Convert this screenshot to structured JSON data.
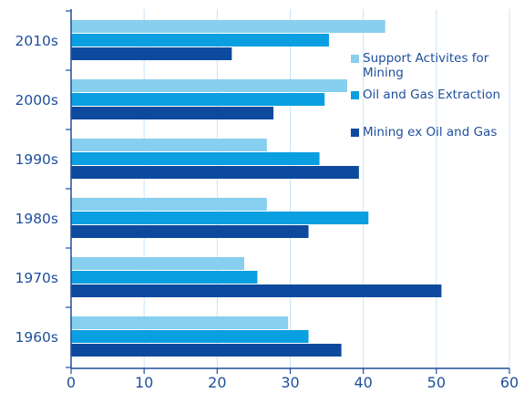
{
  "chart_data": {
    "type": "bar",
    "orientation": "horizontal",
    "categories": [
      "2010s",
      "2000s",
      "1990s",
      "1980s",
      "1970s",
      "1960s"
    ],
    "series": [
      {
        "name": "Support Activites for Mining",
        "color": "#87cfee",
        "values": [
          43,
          37.8,
          26.8,
          26.8,
          23.7,
          29.7
        ]
      },
      {
        "name": "Oil and Gas Extraction",
        "color": "#0a9fe0",
        "values": [
          35.3,
          34.7,
          34,
          40.7,
          25.5,
          32.5
        ]
      },
      {
        "name": "Mining ex Oil and Gas",
        "color": "#0d4a9e",
        "values": [
          22,
          27.7,
          39.4,
          32.5,
          50.7,
          37
        ]
      }
    ],
    "xlim": [
      0,
      60
    ],
    "xticks": [
      "0",
      "10",
      "20",
      "30",
      "40",
      "50",
      "60"
    ],
    "grid": "vertical",
    "legend_position": "top-right",
    "title": "",
    "xlabel": "",
    "ylabel": ""
  }
}
